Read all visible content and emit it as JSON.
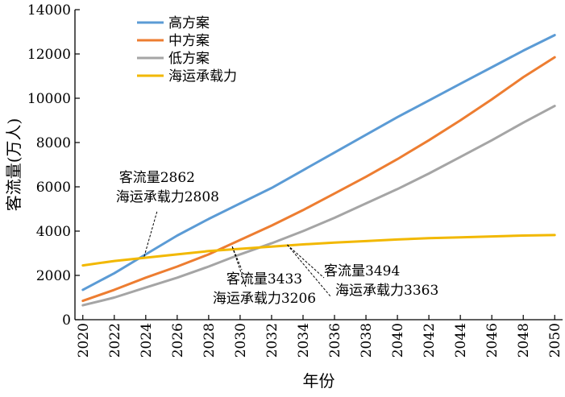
{
  "chart_data": {
    "type": "line",
    "title": "",
    "xlabel": "年份",
    "ylabel": "客流量(万人)",
    "xlim": [
      2019.5,
      2050.5
    ],
    "ylim": [
      0,
      14000
    ],
    "x_ticks": [
      2020,
      2022,
      2024,
      2026,
      2028,
      2030,
      2032,
      2034,
      2036,
      2038,
      2040,
      2042,
      2044,
      2046,
      2048,
      2050
    ],
    "x_tick_labels": [
      "2020",
      "2022",
      "2024",
      "2026",
      "2028",
      "2030",
      "2032",
      "2034",
      "2036",
      "2038",
      "2040",
      "2042",
      "2044",
      "2046",
      "2048",
      "2050"
    ],
    "y_ticks": [
      0,
      2000,
      4000,
      6000,
      8000,
      10000,
      12000,
      14000
    ],
    "y_tick_labels": [
      "0",
      "2000",
      "4000",
      "6000",
      "8000",
      "10000",
      "12000",
      "14000"
    ],
    "grid": false,
    "legend_position": "top-left",
    "series": [
      {
        "name": "高方案",
        "color": "#5b9bd5",
        "points": [
          [
            2020,
            1350
          ],
          [
            2022,
            2100
          ],
          [
            2024,
            2950
          ],
          [
            2026,
            3800
          ],
          [
            2028,
            4550
          ],
          [
            2030,
            5250
          ],
          [
            2032,
            5950
          ],
          [
            2034,
            6750
          ],
          [
            2036,
            7550
          ],
          [
            2038,
            8350
          ],
          [
            2040,
            9150
          ],
          [
            2042,
            9900
          ],
          [
            2044,
            10650
          ],
          [
            2046,
            11400
          ],
          [
            2048,
            12150
          ],
          [
            2050,
            12850
          ]
        ]
      },
      {
        "name": "中方案",
        "color": "#ed7d31",
        "points": [
          [
            2020,
            850
          ],
          [
            2022,
            1350
          ],
          [
            2024,
            1900
          ],
          [
            2026,
            2400
          ],
          [
            2028,
            2950
          ],
          [
            2030,
            3600
          ],
          [
            2032,
            4250
          ],
          [
            2034,
            4950
          ],
          [
            2036,
            5700
          ],
          [
            2038,
            6450
          ],
          [
            2040,
            7250
          ],
          [
            2042,
            8100
          ],
          [
            2044,
            9000
          ],
          [
            2046,
            9950
          ],
          [
            2048,
            10950
          ],
          [
            2050,
            11850
          ]
        ]
      },
      {
        "name": "低方案",
        "color": "#a5a5a5",
        "points": [
          [
            2020,
            650
          ],
          [
            2022,
            1000
          ],
          [
            2024,
            1450
          ],
          [
            2026,
            1900
          ],
          [
            2028,
            2400
          ],
          [
            2030,
            2950
          ],
          [
            2032,
            3450
          ],
          [
            2034,
            4000
          ],
          [
            2036,
            4600
          ],
          [
            2038,
            5250
          ],
          [
            2040,
            5900
          ],
          [
            2042,
            6600
          ],
          [
            2044,
            7350
          ],
          [
            2046,
            8100
          ],
          [
            2048,
            8900
          ],
          [
            2050,
            9650
          ]
        ]
      },
      {
        "name": "海运承载力",
        "color": "#f2b800",
        "points": [
          [
            2020,
            2450
          ],
          [
            2022,
            2650
          ],
          [
            2024,
            2800
          ],
          [
            2026,
            2950
          ],
          [
            2028,
            3100
          ],
          [
            2030,
            3200
          ],
          [
            2032,
            3300
          ],
          [
            2034,
            3400
          ],
          [
            2036,
            3480
          ],
          [
            2038,
            3550
          ],
          [
            2040,
            3620
          ],
          [
            2042,
            3680
          ],
          [
            2044,
            3720
          ],
          [
            2046,
            3760
          ],
          [
            2048,
            3800
          ],
          [
            2050,
            3820
          ]
        ]
      }
    ],
    "annotations": [
      {
        "lines": [
          "客流量2862",
          "海运承载力2808"
        ],
        "x": 2023.9,
        "y": 2850,
        "text_side": "upper-left"
      },
      {
        "lines": [
          "客流量3433",
          "海运承载力3206"
        ],
        "x": 2029.5,
        "y": 3300,
        "text_side": "lower-left"
      },
      {
        "lines": [
          "客流量3494",
          "海运承载力3363"
        ],
        "x": 2033.0,
        "y": 3380,
        "text_side": "lower-right"
      }
    ]
  }
}
